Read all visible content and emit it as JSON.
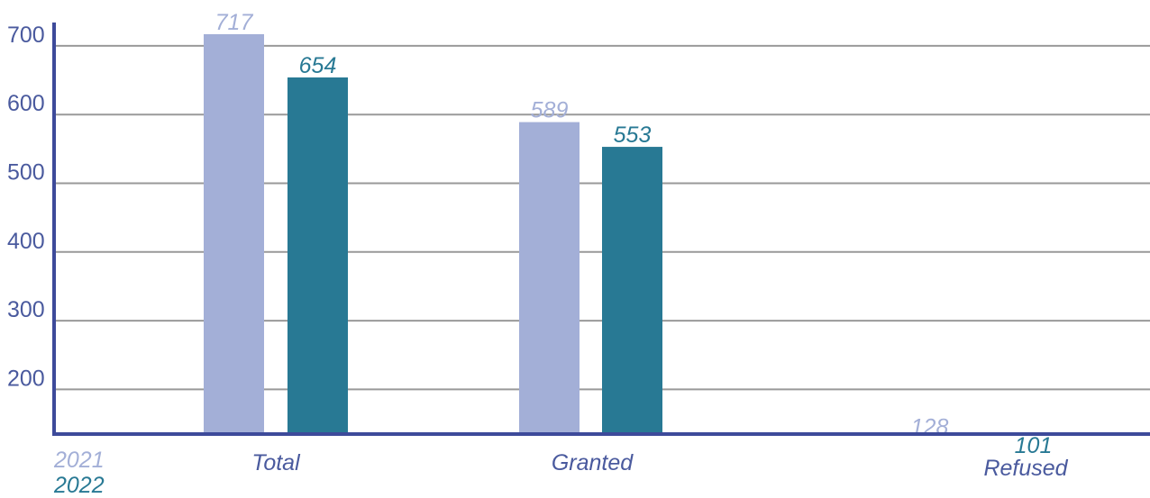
{
  "chart_data": {
    "type": "bar",
    "categories": [
      "Total",
      "Granted",
      "Refused"
    ],
    "series": [
      {
        "name": "2021",
        "values": [
          717,
          589,
          128
        ],
        "color": "#a3afd7"
      },
      {
        "name": "2022",
        "values": [
          654,
          553,
          101
        ],
        "color": "#287994"
      }
    ],
    "yticks": [
      200,
      300,
      400,
      500,
      600,
      700
    ],
    "ylim": [
      135,
      735
    ],
    "grid": true,
    "legend": "bottom-left",
    "axis_color": "#3d4a9a",
    "grid_color": "#999999",
    "tick_label_color": "#4a5a9e",
    "category_label_color": "#4a5a9e"
  }
}
